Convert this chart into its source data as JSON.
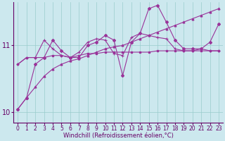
{
  "title": "",
  "xlabel": "Windchill (Refroidissement éolien,°C)",
  "ylabel": "",
  "bg_color": "#cce8ee",
  "grid_color": "#99cccc",
  "line_color": "#993399",
  "xlim": [
    -0.5,
    23.5
  ],
  "ylim": [
    9.85,
    11.65
  ],
  "yticks": [
    10,
    11
  ],
  "xticks": [
    0,
    1,
    2,
    3,
    4,
    5,
    6,
    7,
    8,
    9,
    10,
    11,
    12,
    13,
    14,
    15,
    16,
    17,
    18,
    19,
    20,
    21,
    22,
    23
  ],
  "line1_x": [
    0,
    1,
    2,
    3,
    4,
    5,
    6,
    7,
    8,
    9,
    10,
    11,
    12,
    13,
    14,
    15,
    16,
    17,
    18,
    19,
    20,
    21,
    22,
    23
  ],
  "line1_y": [
    10.72,
    10.82,
    10.82,
    10.82,
    10.85,
    10.85,
    10.82,
    10.85,
    10.88,
    10.88,
    10.9,
    10.9,
    10.9,
    10.9,
    10.9,
    10.9,
    10.92,
    10.92,
    10.92,
    10.92,
    10.92,
    10.92,
    10.92,
    10.92
  ],
  "line2_x": [
    0,
    1,
    2,
    3,
    4,
    5,
    6,
    7,
    8,
    9,
    10,
    11,
    12,
    13,
    14,
    15,
    16,
    17,
    18,
    19,
    20,
    21,
    22,
    23
  ],
  "line2_y": [
    10.72,
    10.82,
    10.82,
    11.08,
    10.95,
    10.85,
    10.82,
    10.9,
    11.05,
    11.1,
    11.08,
    10.88,
    10.85,
    11.12,
    11.18,
    11.15,
    11.12,
    11.1,
    10.95,
    10.92,
    10.92,
    10.95,
    10.92,
    10.92
  ],
  "line3_x": [
    0,
    1,
    2,
    3,
    4,
    5,
    6,
    7,
    8,
    9,
    10,
    11,
    12,
    13,
    14,
    15,
    16,
    17,
    18,
    19,
    20,
    21,
    22,
    23
  ],
  "line3_y": [
    10.05,
    10.22,
    10.72,
    10.82,
    11.08,
    10.92,
    10.82,
    10.82,
    11.0,
    11.05,
    11.15,
    11.08,
    10.55,
    11.05,
    11.18,
    11.55,
    11.6,
    11.35,
    11.08,
    10.95,
    10.95,
    10.95,
    11.05,
    11.32
  ],
  "line4_x": [
    0,
    1,
    2,
    3,
    4,
    5,
    6,
    7,
    8,
    9,
    10,
    11,
    12,
    13,
    14,
    15,
    16,
    17,
    18,
    19,
    20,
    21,
    22,
    23
  ],
  "line4_y": [
    10.05,
    10.22,
    10.38,
    10.54,
    10.65,
    10.72,
    10.77,
    10.8,
    10.85,
    10.9,
    10.95,
    10.98,
    11.0,
    11.05,
    11.1,
    11.15,
    11.2,
    11.25,
    11.3,
    11.35,
    11.4,
    11.45,
    11.5,
    11.55
  ],
  "font_color": "#660066",
  "tick_font_size": 5.5,
  "label_font_size": 6.0
}
